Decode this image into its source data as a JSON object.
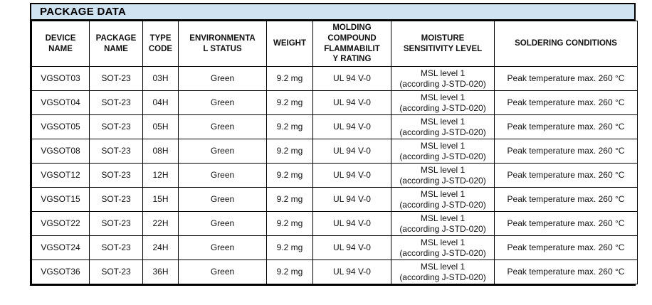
{
  "title": "PACKAGE DATA",
  "colors": {
    "title_bg": "#cfe3f0",
    "border": "#000000",
    "text": "#111111"
  },
  "table": {
    "columns": [
      {
        "key": "device",
        "label": "DEVICE\nNAME"
      },
      {
        "key": "package",
        "label": "PACKAGE\nNAME"
      },
      {
        "key": "type_code",
        "label": "TYPE\nCODE"
      },
      {
        "key": "env_status",
        "label": "ENVIRONMENTA\nL STATUS"
      },
      {
        "key": "weight",
        "label": "WEIGHT"
      },
      {
        "key": "flammability",
        "label": "MOLDING\nCOMPOUND\nFLAMMABILIT\nY RATING"
      },
      {
        "key": "msl",
        "label": "MOISTURE\nSENSITIVITY LEVEL"
      },
      {
        "key": "soldering",
        "label": "SOLDERING CONDITIONS"
      }
    ],
    "rows": [
      {
        "device": "VGSOT03",
        "package": "SOT-23",
        "type_code": "03H",
        "env_status": "Green",
        "weight": "9.2 mg",
        "flammability": "UL 94 V-0",
        "msl": "MSL level 1\n(according J-STD-020)",
        "soldering": "Peak temperature max. 260 °C"
      },
      {
        "device": "VGSOT04",
        "package": "SOT-23",
        "type_code": "04H",
        "env_status": "Green",
        "weight": "9.2 mg",
        "flammability": "UL 94 V-0",
        "msl": "MSL level 1\n(according J-STD-020)",
        "soldering": "Peak temperature max. 260 °C"
      },
      {
        "device": "VGSOT05",
        "package": "SOT-23",
        "type_code": "05H",
        "env_status": "Green",
        "weight": "9.2 mg",
        "flammability": "UL 94 V-0",
        "msl": "MSL level 1\n(according J-STD-020)",
        "soldering": "Peak temperature max. 260 °C"
      },
      {
        "device": "VGSOT08",
        "package": "SOT-23",
        "type_code": "08H",
        "env_status": "Green",
        "weight": "9.2 mg",
        "flammability": "UL 94 V-0",
        "msl": "MSL level 1\n(according J-STD-020)",
        "soldering": "Peak temperature max. 260 °C"
      },
      {
        "device": "VGSOT12",
        "package": "SOT-23",
        "type_code": "12H",
        "env_status": "Green",
        "weight": "9.2 mg",
        "flammability": "UL 94 V-0",
        "msl": "MSL level 1\n(according J-STD-020)",
        "soldering": "Peak temperature max. 260 °C"
      },
      {
        "device": "VGSOT15",
        "package": "SOT-23",
        "type_code": "15H",
        "env_status": "Green",
        "weight": "9.2 mg",
        "flammability": "UL 94 V-0",
        "msl": "MSL level 1\n(according J-STD-020)",
        "soldering": "Peak temperature max. 260 °C"
      },
      {
        "device": "VGSOT22",
        "package": "SOT-23",
        "type_code": "22H",
        "env_status": "Green",
        "weight": "9.2 mg",
        "flammability": "UL 94 V-0",
        "msl": "MSL level 1\n(according J-STD-020)",
        "soldering": "Peak temperature max. 260 °C"
      },
      {
        "device": "VGSOT24",
        "package": "SOT-23",
        "type_code": "24H",
        "env_status": "Green",
        "weight": "9.2 mg",
        "flammability": "UL 94 V-0",
        "msl": "MSL level 1\n(according J-STD-020)",
        "soldering": "Peak temperature max. 260 °C"
      },
      {
        "device": "VGSOT36",
        "package": "SOT-23",
        "type_code": "36H",
        "env_status": "Green",
        "weight": "9.2 mg",
        "flammability": "UL 94 V-0",
        "msl": "MSL level 1\n(according J-STD-020)",
        "soldering": "Peak temperature max. 260 °C"
      }
    ]
  }
}
